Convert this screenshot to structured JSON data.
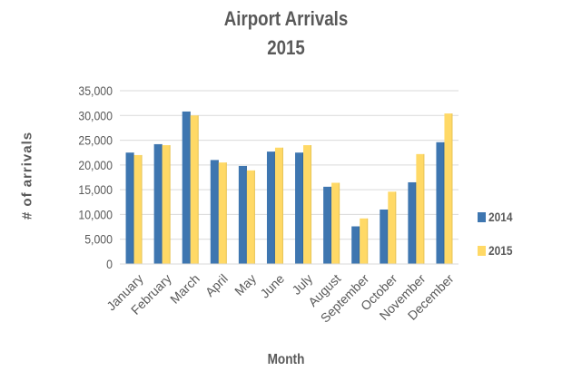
{
  "chart_data": {
    "type": "bar",
    "title": "Airport Arrivals",
    "subtitle": "2015",
    "xlabel": "Month",
    "ylabel": "# of arrivals",
    "ylim": [
      0,
      35000
    ],
    "yticks": [
      0,
      5000,
      10000,
      15000,
      20000,
      25000,
      30000,
      35000
    ],
    "ytick_labels": [
      "0",
      "5,000",
      "10,000",
      "15,000",
      "20,000",
      "25,000",
      "30,000",
      "35,000"
    ],
    "grid": true,
    "legend_position": "right",
    "categories": [
      "January",
      "February",
      "March",
      "April",
      "May",
      "June",
      "July",
      "August",
      "September",
      "October",
      "November",
      "December"
    ],
    "series": [
      {
        "name": "2014",
        "color": "#3E76B0",
        "values": [
          22500,
          24200,
          30800,
          21000,
          19800,
          22700,
          22500,
          15600,
          7600,
          11000,
          16500,
          24600
        ]
      },
      {
        "name": "2015",
        "color": "#FFD966",
        "values": [
          22000,
          24000,
          30000,
          20500,
          18900,
          23500,
          24000,
          16400,
          9200,
          14600,
          22200,
          30400
        ]
      }
    ]
  },
  "colors": {
    "text": "#595959",
    "gridline": "#D9D9D9",
    "series_2014": "#3E76B0",
    "series_2015": "#FFD966"
  }
}
